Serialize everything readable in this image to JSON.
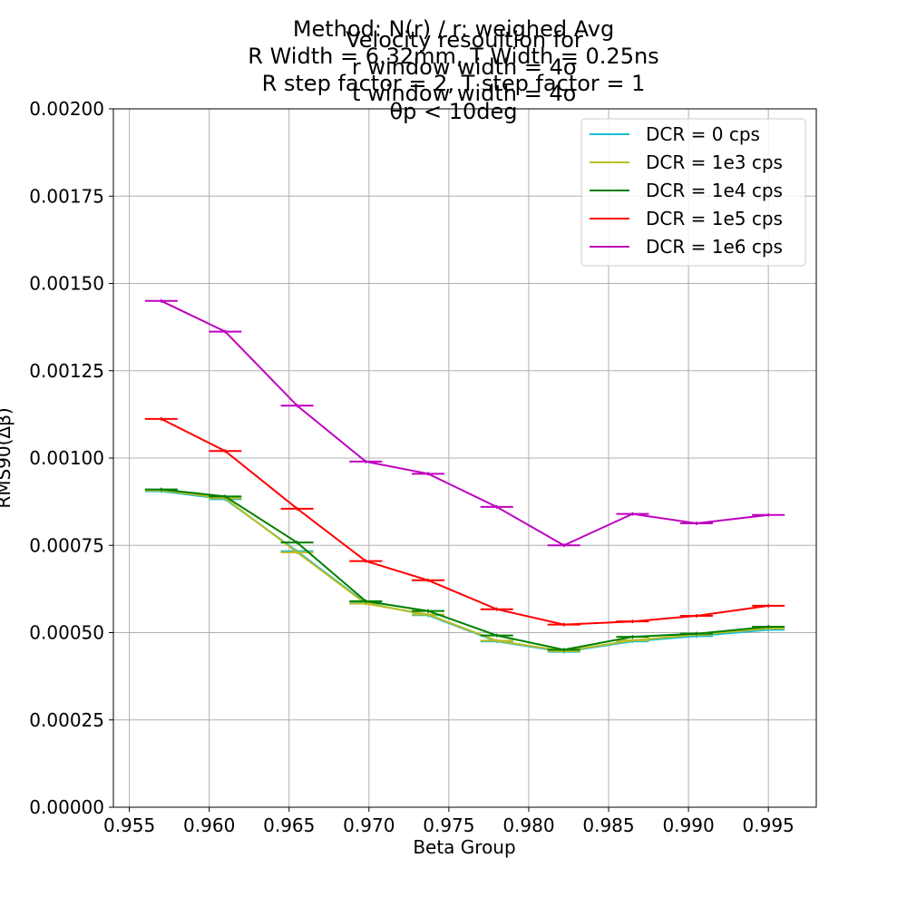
{
  "chart_data": {
    "type": "line",
    "title_lines": [
      "Method: N(r) / r: weighed Avg",
      "R Width = 6.32mm, T Width = 0.25ns",
      "R step factor = 2, T step factor = 1"
    ],
    "title_overlay_lines": [
      "Velocity resoultion for",
      "r window width = 4σ",
      "t window width = 4σ",
      "θp < 10deg"
    ],
    "xlabel": "Beta Group",
    "ylabel": "RMS90(Δβ)",
    "xlim": [
      0.954,
      0.998
    ],
    "ylim": [
      0.0,
      0.002
    ],
    "xticks": [
      "0.955",
      "0.960",
      "0.965",
      "0.970",
      "0.975",
      "0.980",
      "0.985",
      "0.990",
      "0.995"
    ],
    "xtick_values": [
      0.955,
      0.96,
      0.965,
      0.97,
      0.975,
      0.98,
      0.985,
      0.99,
      0.995
    ],
    "yticks": [
      "0.00000",
      "0.00025",
      "0.00050",
      "0.00075",
      "0.00100",
      "0.00125",
      "0.00150",
      "0.00175",
      "0.00200"
    ],
    "ytick_values": [
      0.0,
      0.00025,
      0.0005,
      0.00075,
      0.001,
      0.00125,
      0.0015,
      0.00175,
      0.002
    ],
    "grid": true,
    "legend_position": "top-right",
    "x": [
      0.957,
      0.961,
      0.9655,
      0.9698,
      0.9737,
      0.978,
      0.9822,
      0.9865,
      0.9905,
      0.995
    ],
    "series": [
      {
        "name": "DCR = 0 cps",
        "color": "#17becf",
        "values": [
          0.000905,
          0.000882,
          0.000733,
          0.000585,
          0.00055,
          0.000475,
          0.000445,
          0.000475,
          0.00049,
          0.000508
        ]
      },
      {
        "name": "DCR = 1e3 cps",
        "color": "#bcbd22",
        "values": [
          0.000907,
          0.000885,
          0.00073,
          0.000583,
          0.000552,
          0.000477,
          0.000447,
          0.000478,
          0.000494,
          0.000512
        ]
      },
      {
        "name": "DCR = 1e4 cps",
        "color": "#008000",
        "values": [
          0.00091,
          0.00089,
          0.000758,
          0.00059,
          0.000562,
          0.000492,
          0.000451,
          0.000488,
          0.000497,
          0.000517
        ]
      },
      {
        "name": "DCR = 1e5 cps",
        "color": "#ff0000",
        "values": [
          0.001112,
          0.00102,
          0.000855,
          0.000705,
          0.00065,
          0.000567,
          0.000523,
          0.000532,
          0.000548,
          0.000577
        ]
      },
      {
        "name": "DCR = 1e6 cps",
        "color": "#bf00bf",
        "values": [
          0.00145,
          0.001362,
          0.00115,
          0.00099,
          0.000955,
          0.00086,
          0.00075,
          0.00084,
          0.000813,
          0.000837
        ]
      }
    ]
  }
}
